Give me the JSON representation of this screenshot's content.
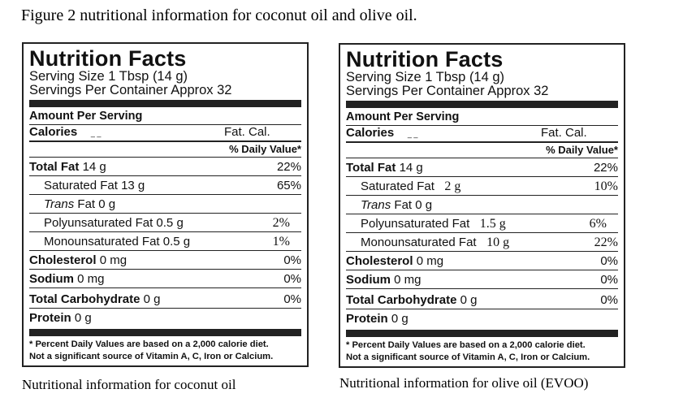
{
  "figure_title": "Figure 2 nutritional information for coconut oil and olive oil.",
  "labels": [
    {
      "heading": "Nutrition Facts",
      "serving_size": "Serving Size 1 Tbsp (14 g)",
      "servings_per_container": "Servings Per Container Approx 32",
      "amount_per_serving": "Amount Per Serving",
      "calories_label": "Calories",
      "calories_value": "_ _",
      "fat_cal": "Fat. Cal.",
      "daily_value_header": "% Daily Value*",
      "total_fat": {
        "label": "Total Fat",
        "amount": "14 g",
        "dv": "22%"
      },
      "saturated_fat": {
        "label": "Saturated Fat",
        "amount": "13 g",
        "dv": "65%"
      },
      "trans_fat": {
        "label": "Trans",
        "rest": "Fat 0 g"
      },
      "polyunsaturated_fat": {
        "label": "Polyunsaturated Fat",
        "amount": "0.5 g",
        "dv": "2%"
      },
      "monounsaturated_fat": {
        "label": "Monounsaturated Fat",
        "amount": "0.5 g",
        "dv": "1%"
      },
      "cholesterol": {
        "label": "Cholesterol",
        "amount": "0 mg",
        "dv": "0%"
      },
      "sodium": {
        "label": "Sodium",
        "amount": "0 mg",
        "dv": "0%"
      },
      "total_carbohydrate": {
        "label": "Total Carbohydrate",
        "amount": "0 g",
        "dv": "0%"
      },
      "protein": {
        "label": "Protein",
        "amount": "0 g"
      },
      "footnote_1": "* Percent Daily Values are based on a 2,000 calorie diet.",
      "footnote_2": "Not a significant source of Vitamin A, C, Iron or Calcium.",
      "caption": "Nutritional information for coconut oil"
    },
    {
      "heading": "Nutrition Facts",
      "serving_size": "Serving Size 1 Tbsp (14 g)",
      "servings_per_container": "Servings Per Container Approx 32",
      "amount_per_serving": "Amount Per Serving",
      "calories_label": "Calories",
      "calories_value": "_ _",
      "fat_cal": "Fat. Cal.",
      "daily_value_header": "% Daily Value*",
      "total_fat": {
        "label": "Total Fat",
        "amount": "14 g",
        "dv": "22%"
      },
      "saturated_fat": {
        "label": "Saturated Fat",
        "amount": "2 g",
        "dv": "10%"
      },
      "trans_fat": {
        "label": "Trans",
        "rest": "Fat 0 g"
      },
      "polyunsaturated_fat": {
        "label": "Polyunsaturated Fat",
        "amount": "1.5 g",
        "dv": "6%"
      },
      "monounsaturated_fat": {
        "label": "Monounsaturated Fat",
        "amount": "10 g",
        "dv": "22%"
      },
      "cholesterol": {
        "label": "Cholesterol",
        "amount": "0 mg",
        "dv": "0%"
      },
      "sodium": {
        "label": "Sodium",
        "amount": "0 mg",
        "dv": "0%"
      },
      "total_carbohydrate": {
        "label": "Total Carbohydrate",
        "amount": "0 g",
        "dv": "0%"
      },
      "protein": {
        "label": "Protein",
        "amount": "0 g"
      },
      "footnote_1": "* Percent Daily Values are based on a 2,000 calorie diet.",
      "footnote_2": "Not a significant source of Vitamin A, C, Iron or Calcium.",
      "caption": "Nutritional information for olive oil (EVOO)"
    }
  ]
}
